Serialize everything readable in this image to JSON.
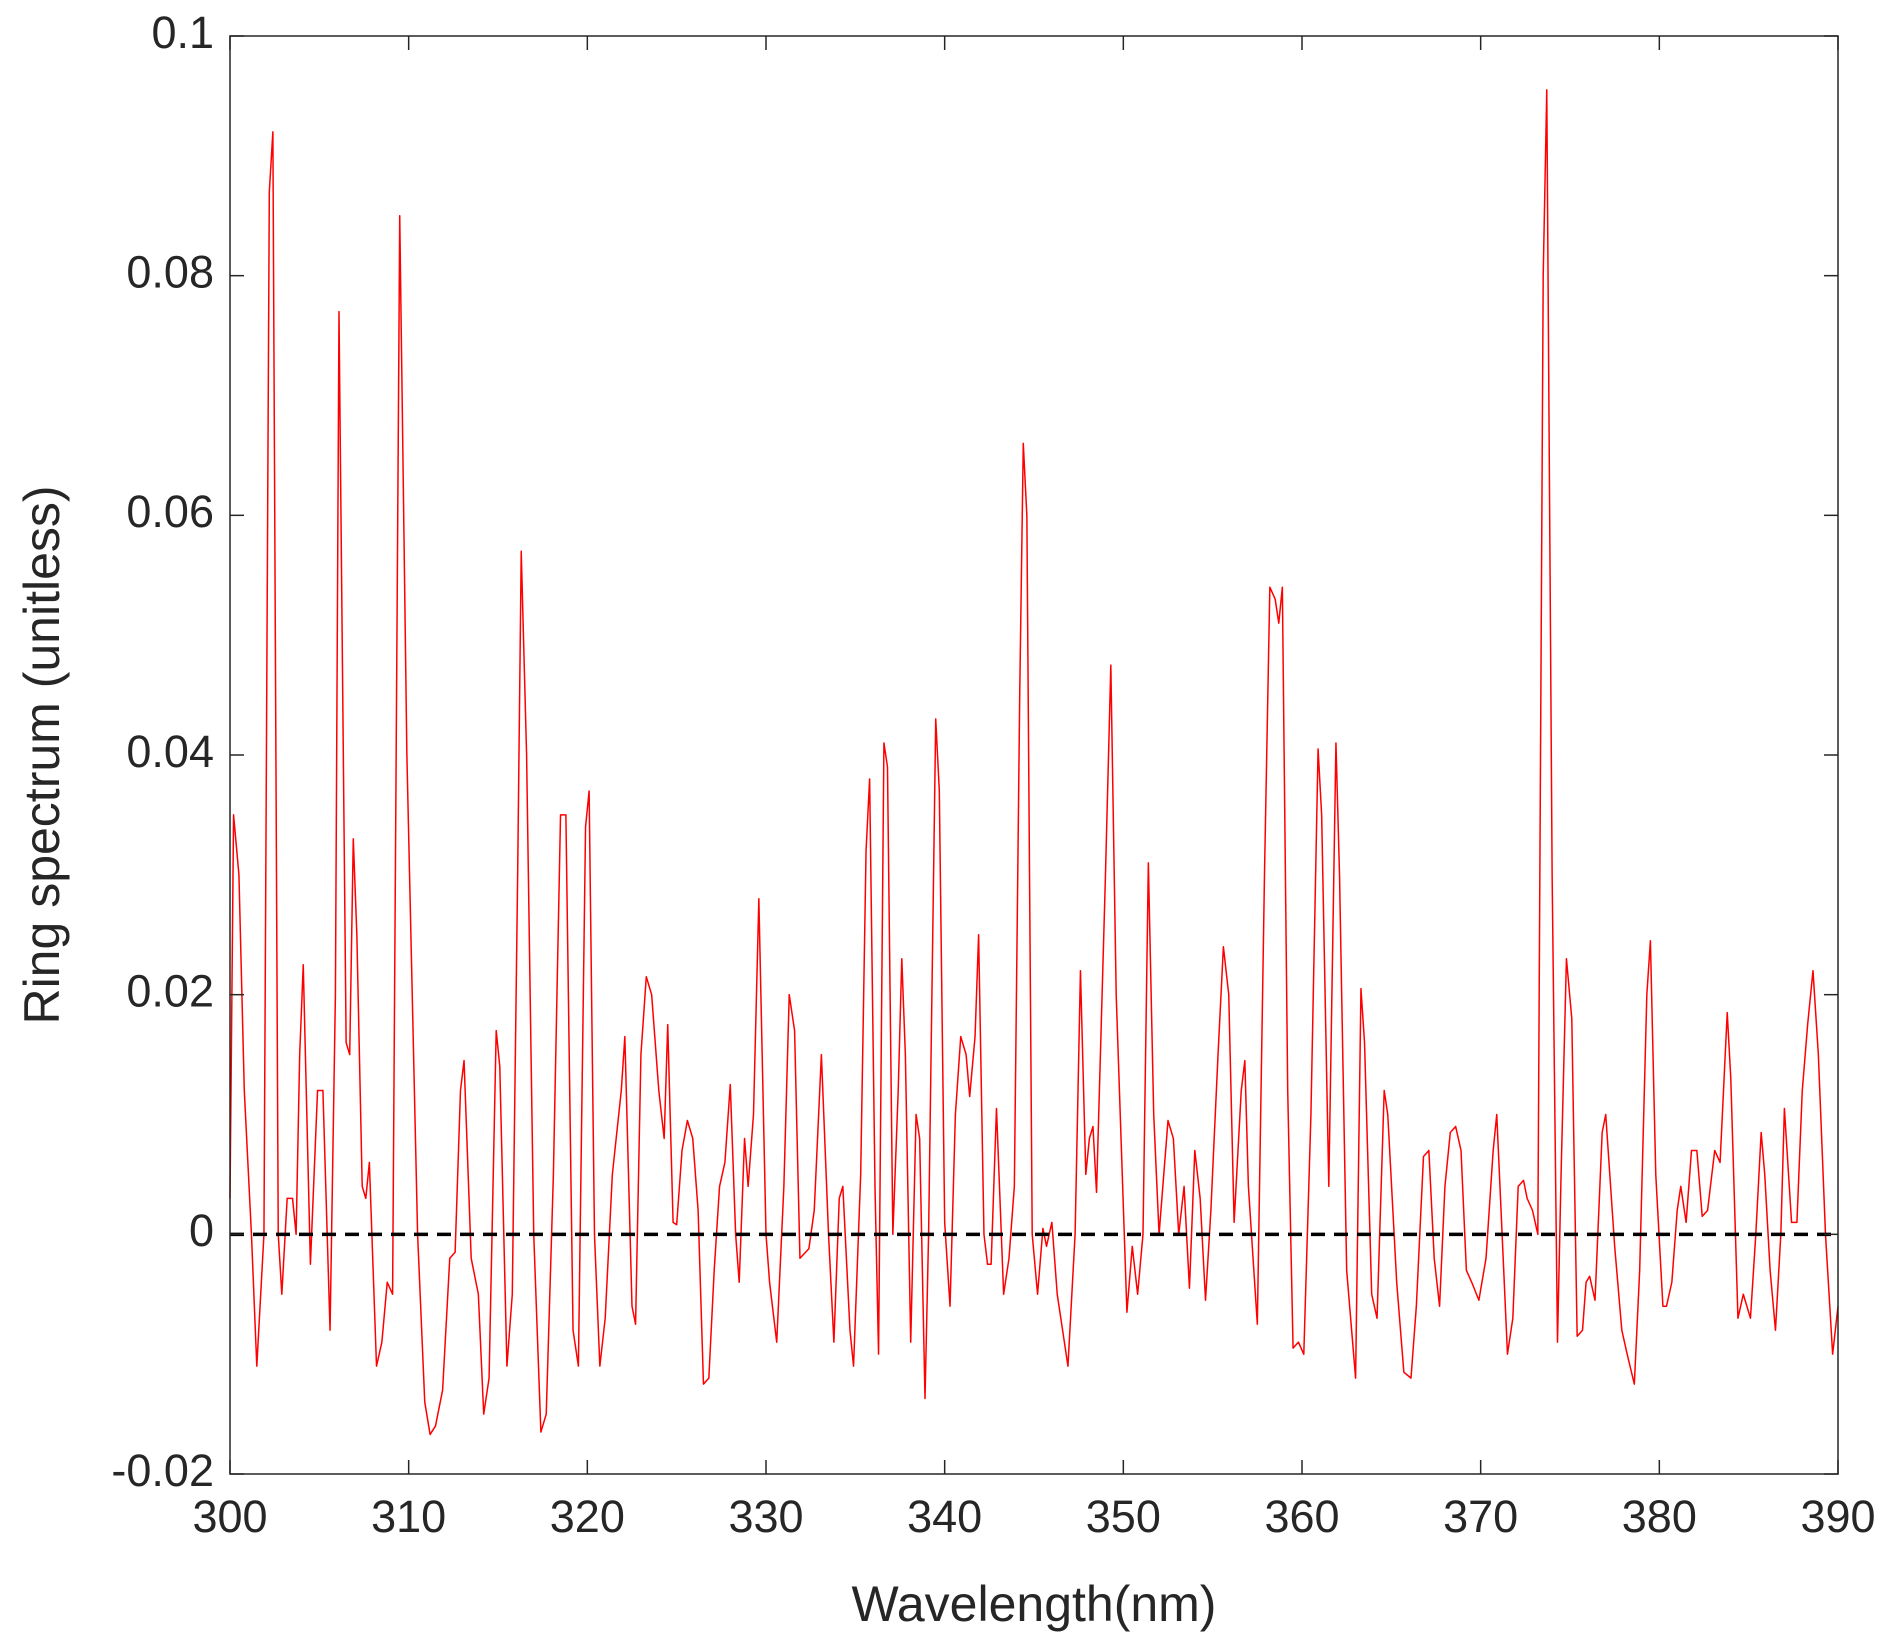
{
  "chart_data": {
    "type": "line",
    "xlabel": "Wavelength(nm)",
    "ylabel": "Ring spectrum (unitless)",
    "xlim": [
      300,
      390
    ],
    "ylim": [
      -0.02,
      0.1
    ],
    "xticks": [
      300,
      310,
      320,
      330,
      340,
      350,
      360,
      370,
      380,
      390
    ],
    "yticks": [
      -0.02,
      0,
      0.02,
      0.04,
      0.06,
      0.08,
      0.1
    ],
    "hline": {
      "value": 0,
      "color": "#000000",
      "style": "dashed"
    },
    "x": [
      300,
      300.2,
      300.5,
      300.8,
      301.2,
      301.5,
      301.9,
      302.2,
      302.4,
      302.7,
      302.9,
      303.2,
      303.5,
      303.7,
      303.9,
      304.1,
      304.5,
      304.9,
      305.2,
      305.6,
      305.9,
      306.1,
      306.5,
      306.7,
      306.9,
      307.1,
      307.4,
      307.6,
      307.8,
      308.2,
      308.5,
      308.8,
      309.1,
      309.5,
      309.9,
      310.5,
      310.9,
      311.2,
      311.5,
      311.9,
      312.3,
      312.6,
      312.9,
      313.1,
      313.5,
      313.9,
      314.2,
      314.5,
      314.9,
      315.1,
      315.5,
      315.8,
      316.1,
      316.3,
      316.6,
      317,
      317.4,
      317.7,
      318.1,
      318.5,
      318.8,
      319.2,
      319.5,
      319.9,
      320.1,
      320.4,
      320.7,
      321,
      321.4,
      321.9,
      322.1,
      322.5,
      322.7,
      323,
      323.3,
      323.6,
      324,
      324.3,
      324.5,
      324.8,
      325,
      325.3,
      325.6,
      325.9,
      326.2,
      326.5,
      326.8,
      327.1,
      327.4,
      327.7,
      328,
      328.3,
      328.5,
      328.8,
      329,
      329.3,
      329.6,
      330,
      330.2,
      330.6,
      331,
      331.3,
      331.6,
      331.9,
      332.4,
      332.7,
      333.1,
      333.5,
      333.8,
      334.1,
      334.3,
      334.7,
      334.9,
      335.3,
      335.6,
      335.8,
      336.1,
      336.3,
      336.6,
      336.8,
      337.1,
      337.4,
      337.6,
      337.8,
      338.1,
      338.4,
      338.6,
      338.9,
      339.1,
      339.5,
      339.7,
      340,
      340.3,
      340.6,
      340.9,
      341.2,
      341.4,
      341.7,
      341.9,
      342.2,
      342.4,
      342.6,
      342.9,
      343.3,
      343.6,
      343.9,
      344.2,
      344.4,
      344.6,
      344.9,
      345.2,
      345.5,
      345.7,
      346,
      346.3,
      346.6,
      346.9,
      347.3,
      347.6,
      347.9,
      348.1,
      348.3,
      348.5,
      349,
      349.3,
      349.6,
      350.2,
      350.5,
      350.8,
      351.1,
      351.4,
      351.7,
      352,
      352.5,
      352.8,
      353.1,
      353.4,
      353.7,
      354,
      354.3,
      354.6,
      354.9,
      355.3,
      355.6,
      355.9,
      356.2,
      356.6,
      356.8,
      357,
      357.5,
      357.9,
      358.2,
      358.5,
      358.7,
      358.9,
      359.2,
      359.5,
      359.8,
      360.1,
      360.5,
      360.9,
      361.1,
      361.5,
      361.9,
      362.1,
      362.5,
      363,
      363.3,
      363.5,
      363.9,
      364.2,
      364.6,
      364.8,
      365.3,
      365.7,
      366.1,
      366.4,
      366.8,
      367.1,
      367.4,
      367.7,
      368,
      368.3,
      368.6,
      368.9,
      369.2,
      369.5,
      369.9,
      370.3,
      370.7,
      370.9,
      371.2,
      371.5,
      371.8,
      372.1,
      372.4,
      372.6,
      372.9,
      373.2,
      373.5,
      373.7,
      374,
      374.3,
      374.5,
      374.8,
      375.1,
      375.4,
      375.7,
      375.9,
      376.1,
      376.4,
      376.8,
      377,
      377.5,
      377.9,
      378.2,
      378.6,
      378.9,
      379.3,
      379.5,
      379.8,
      380.2,
      380.4,
      380.7,
      381,
      381.2,
      381.5,
      381.8,
      382.1,
      382.4,
      382.7,
      383.1,
      383.4,
      383.8,
      384,
      384.4,
      384.7,
      385.1,
      385.4,
      385.7,
      385.9,
      386.2,
      386.5,
      386.8,
      387,
      387.4,
      387.7,
      388,
      388.3,
      388.6,
      388.9,
      389.3,
      389.7,
      390
    ],
    "series": [
      {
        "color": "#ff0000",
        "values": [
          0.003,
          0.035,
          0.03,
          0.012,
          0,
          -0.011,
          0,
          0.087,
          0.092,
          0,
          -0.005,
          0.003,
          0.003,
          0,
          0.015,
          0.0225,
          -0.0025,
          0.012,
          0.012,
          -0.008,
          0.02,
          0.077,
          0.016,
          0.015,
          0.033,
          0.025,
          0.004,
          0.003,
          0.006,
          -0.011,
          -0.009,
          -0.004,
          -0.005,
          0.085,
          0.04,
          0,
          -0.014,
          -0.0167,
          -0.016,
          -0.013,
          -0.002,
          -0.0015,
          0.012,
          0.0145,
          -0.002,
          -0.005,
          -0.015,
          -0.012,
          0.017,
          0.014,
          -0.011,
          -0.005,
          0.03,
          0.057,
          0.04,
          0,
          -0.0165,
          -0.015,
          0.005,
          0.035,
          0.035,
          -0.008,
          -0.011,
          0.034,
          0.037,
          0,
          -0.011,
          -0.007,
          0.005,
          0.012,
          0.0165,
          -0.006,
          -0.0075,
          0.015,
          0.0215,
          0.02,
          0.012,
          0.008,
          0.0175,
          0.001,
          0.0008,
          0.007,
          0.0095,
          0.008,
          0.002,
          -0.0125,
          -0.012,
          -0.003,
          0.004,
          0.006,
          0.0125,
          0,
          -0.004,
          0.008,
          0.004,
          0.01,
          0.028,
          0,
          -0.004,
          -0.009,
          0.004,
          0.02,
          0.017,
          -0.002,
          -0.0012,
          0.002,
          0.015,
          0,
          -0.009,
          0.003,
          0.004,
          -0.008,
          -0.011,
          0.005,
          0.032,
          0.038,
          0.004,
          -0.01,
          0.041,
          0.039,
          0,
          0.012,
          0.023,
          0.015,
          -0.009,
          0.01,
          0.008,
          -0.0137,
          0,
          0.043,
          0.037,
          0.001,
          -0.006,
          0.01,
          0.0165,
          0.015,
          0.0115,
          0.0165,
          0.025,
          0,
          -0.0025,
          -0.0025,
          0.0105,
          -0.005,
          -0.002,
          0.004,
          0.045,
          0.066,
          0.06,
          0,
          -0.005,
          0.0005,
          -0.001,
          0.001,
          -0.005,
          -0.008,
          -0.011,
          0,
          0.022,
          0.005,
          0.008,
          0.009,
          0.0035,
          0.03,
          0.0475,
          0.02,
          -0.0065,
          -0.001,
          -0.005,
          0,
          0.031,
          0.01,
          0,
          0.0095,
          0.008,
          0,
          0.004,
          -0.0045,
          0.007,
          0.003,
          -0.0055,
          0.002,
          0.015,
          0.024,
          0.02,
          0.001,
          0.012,
          0.0145,
          0.004,
          -0.0075,
          0.03,
          0.054,
          0.053,
          0.051,
          0.054,
          0.012,
          -0.0095,
          -0.009,
          -0.01,
          0.01,
          0.0405,
          0.035,
          0.004,
          0.041,
          0.03,
          -0.003,
          -0.012,
          0.0205,
          0.016,
          -0.005,
          -0.007,
          0.012,
          0.01,
          -0.004,
          -0.0115,
          -0.012,
          -0.006,
          0.0065,
          0.007,
          -0.002,
          -0.006,
          0.004,
          0.0085,
          0.009,
          0.007,
          -0.003,
          -0.004,
          -0.0055,
          -0.002,
          0.007,
          0.01,
          0,
          -0.01,
          -0.007,
          0.004,
          0.0045,
          0.003,
          0.002,
          0,
          0.08,
          0.0955,
          0.03,
          -0.009,
          0.005,
          0.023,
          0.018,
          -0.0085,
          -0.008,
          -0.004,
          -0.0035,
          -0.0055,
          0.0085,
          0.01,
          -0.001,
          -0.008,
          -0.01,
          -0.0125,
          -0.003,
          0.02,
          0.0245,
          0.005,
          -0.006,
          -0.006,
          -0.004,
          0.002,
          0.004,
          0.001,
          0.007,
          0.007,
          0.0015,
          0.002,
          0.007,
          0.006,
          0.0185,
          0.013,
          -0.007,
          -0.005,
          -0.007,
          0,
          0.0085,
          0.005,
          -0.003,
          -0.008,
          0,
          0.0105,
          0.001,
          0.001,
          0.012,
          0.0175,
          0.022,
          0.015,
          0,
          -0.01,
          -0.006
        ]
      }
    ]
  }
}
